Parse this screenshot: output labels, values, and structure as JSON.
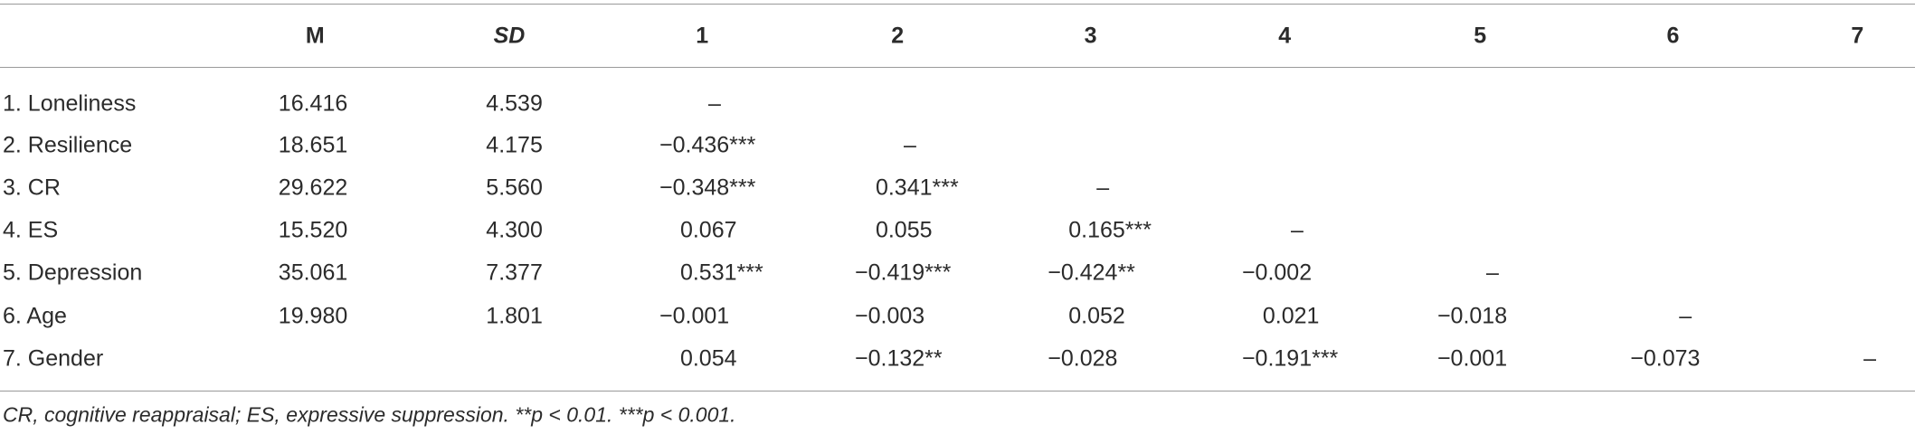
{
  "table": {
    "header": [
      "M",
      "SD",
      "1",
      "2",
      "3",
      "4",
      "5",
      "6",
      "7"
    ],
    "rows": [
      {
        "label": "1. Loneliness",
        "cells": [
          "16.416",
          "4.539",
          "–",
          null,
          null,
          null,
          null,
          null,
          null
        ]
      },
      {
        "label": "2. Resilience",
        "cells": [
          "18.651",
          "4.175",
          "−0.436***",
          "–",
          null,
          null,
          null,
          null,
          null
        ]
      },
      {
        "label": "3. CR",
        "cells": [
          "29.622",
          "5.560",
          "−0.348***",
          "0.341***",
          "–",
          null,
          null,
          null,
          null
        ]
      },
      {
        "label": "4. ES",
        "cells": [
          "15.520",
          "4.300",
          "0.067",
          "0.055",
          "0.165***",
          "–",
          null,
          null,
          null
        ]
      },
      {
        "label": "5. Depression",
        "cells": [
          "35.061",
          "7.377",
          "0.531***",
          "−0.419***",
          "−0.424**",
          "−0.002",
          "–",
          null,
          null
        ]
      },
      {
        "label": "6. Age",
        "cells": [
          "19.980",
          "1.801",
          "−0.001",
          "−0.003",
          "0.052",
          "0.021",
          "−0.018",
          "–",
          null
        ]
      },
      {
        "label": "7. Gender",
        "cells": [
          null,
          null,
          "0.054",
          "−0.132**",
          "−0.028",
          "−0.191***",
          "−0.001",
          "−0.073",
          "–"
        ]
      }
    ],
    "note": "CR, cognitive reappraisal; ES, expressive suppression. **p < 0.01. ***p < 0.001."
  }
}
